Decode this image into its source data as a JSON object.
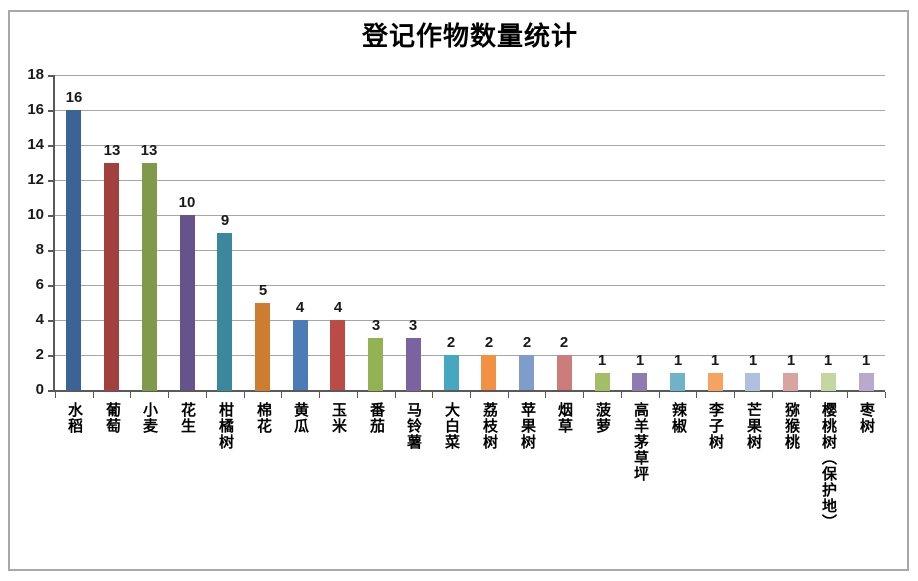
{
  "title": "登记作物数量统计",
  "chart_data": {
    "type": "bar",
    "title": "登记作物数量统计",
    "categories": [
      "水稻",
      "葡萄",
      "小麦",
      "花生",
      "柑橘树",
      "棉花",
      "黄瓜",
      "玉米",
      "番茄",
      "马铃薯",
      "大白菜",
      "荔枝树",
      "苹果树",
      "烟草",
      "菠萝",
      "高羊茅草坪",
      "辣椒",
      "李子树",
      "芒果树",
      "猕猴桃",
      "樱桃树（保护地）",
      "枣树"
    ],
    "values": [
      16,
      13,
      13,
      10,
      9,
      5,
      4,
      4,
      3,
      3,
      2,
      2,
      2,
      2,
      1,
      1,
      1,
      1,
      1,
      1,
      1,
      1
    ],
    "bar_colors": [
      "#3a6397",
      "#a2403d",
      "#809a49",
      "#67538b",
      "#3b879e",
      "#ce7c2f",
      "#4c7cb7",
      "#bb4b47",
      "#93b254",
      "#7b63a2",
      "#47a6c0",
      "#f29144",
      "#7f9dcb",
      "#cc7c7b",
      "#a4bd68",
      "#8f7ab1",
      "#6fb3c9",
      "#f7a261",
      "#afc1df",
      "#d9a3a2",
      "#c5d6a2",
      "#b8a9ce"
    ],
    "xlabel": "",
    "ylabel": "",
    "ylim": [
      0,
      18
    ],
    "yticks": [
      0,
      2,
      4,
      6,
      8,
      10,
      12,
      14,
      16,
      18
    ],
    "grid": "horizontal",
    "legend": "none",
    "data_labels": "above-bars",
    "colors": {
      "gridline": "#a6a6a6",
      "axis": "#595959",
      "text": "#1a1a1a",
      "frame_border": "#a8a8a8",
      "background": "#ffffff"
    }
  }
}
